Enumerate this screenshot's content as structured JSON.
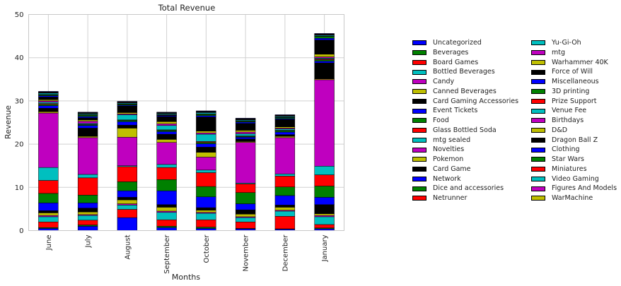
{
  "chart_data": {
    "type": "bar",
    "stacked": true,
    "title": "Total Revenue",
    "xlabel": "Months",
    "ylabel": "Revenue",
    "ylim": [
      0,
      50
    ],
    "yticks": [
      "0",
      "10",
      "20",
      "30",
      "40",
      "50"
    ],
    "grid": true,
    "legend_position": "right, outside plot, two columns",
    "categories": [
      "June",
      "July",
      "August",
      "September",
      "October",
      "November",
      "December",
      "January"
    ],
    "series": [
      {
        "name": "Uncategorized",
        "color": "#0000ff",
        "values": [
          0.5,
          1.0,
          3.0,
          0.7,
          0.5,
          0.4,
          0.3,
          0.4
        ]
      },
      {
        "name": "Beverages",
        "color": "#008000",
        "values": [
          0.2,
          0.3,
          0,
          0.3,
          0.3,
          0.1,
          0.1,
          0.2
        ]
      },
      {
        "name": "Board Games",
        "color": "#ff0000",
        "values": [
          1.3,
          1.1,
          1.9,
          1.5,
          1.7,
          1.5,
          2.9,
          0.8
        ]
      },
      {
        "name": "Bottled Beverages",
        "color": "#00bfbf",
        "values": [
          1.2,
          1.1,
          1.0,
          1.7,
          1.5,
          1.0,
          1.2,
          1.8
        ]
      },
      {
        "name": "Candy",
        "color": "#bf00bf",
        "values": [
          0.3,
          0.2,
          0.3,
          0.3,
          0.2,
          0.2,
          0.2,
          0.3
        ]
      },
      {
        "name": "Canned Beverages",
        "color": "#bfbf00",
        "values": [
          0.6,
          0.6,
          0.9,
          0.9,
          0.5,
          0.6,
          0.7,
          0.4
        ]
      },
      {
        "name": "Card Gaming Accessories",
        "color": "#000000",
        "values": [
          0.5,
          0.9,
          0.6,
          0.6,
          0.6,
          1.0,
          0.5,
          2.1
        ]
      },
      {
        "name": "Event Tickets",
        "color": "#0000ff",
        "values": [
          1.8,
          1.2,
          1.5,
          3.2,
          2.5,
          1.4,
          2.2,
          1.7
        ]
      },
      {
        "name": "Food",
        "color": "#008000",
        "values": [
          2.2,
          1.8,
          2.1,
          2.6,
          2.4,
          2.6,
          2.0,
          2.6
        ]
      },
      {
        "name": "Glass Bottled Soda",
        "color": "#ff0000",
        "values": [
          3.0,
          4.0,
          3.5,
          2.8,
          3.2,
          2.0,
          2.5,
          2.6
        ]
      },
      {
        "name": "mtg sealed",
        "color": "#00bfbf",
        "values": [
          3.0,
          0.8,
          0.2,
          0.7,
          0.6,
          0.2,
          0.5,
          2.0
        ]
      },
      {
        "name": "Novelties",
        "color": "#bf00bf",
        "values": [
          12.6,
          8.5,
          6.6,
          5.1,
          3.0,
          9.4,
          8.4,
          20.0
        ]
      },
      {
        "name": "Pokemon",
        "color": "#bfbf00",
        "values": [
          0.3,
          0.3,
          2.1,
          0.7,
          1.1,
          0.2,
          0.3,
          0.2
        ]
      },
      {
        "name": "Card Game",
        "color": "#000000",
        "values": [
          0.8,
          1.9,
          0.7,
          1.2,
          1.2,
          0.6,
          0.4,
          3.7
        ]
      },
      {
        "name": "Network",
        "color": "#0000ff",
        "values": [
          0.6,
          0.6,
          0.8,
          0.6,
          0.8,
          0.4,
          0.6,
          0.4
        ]
      },
      {
        "name": "Dice and accessories",
        "color": "#008000",
        "values": [
          0.3,
          0.2,
          0.3,
          0.3,
          0.3,
          0.2,
          0.3,
          0.3
        ]
      },
      {
        "name": "Netrunner",
        "color": "#ff0000",
        "values": [
          0.2,
          0.1,
          0.1,
          0.1,
          0.2,
          0.1,
          0.1,
          0.2
        ]
      },
      {
        "name": "Yu-Gi-Oh",
        "color": "#00bfbf",
        "values": [
          0.3,
          0.2,
          1.2,
          1.0,
          1.7,
          0.5,
          0.3,
          0.2
        ]
      },
      {
        "name": "mtg",
        "color": "#bf00bf",
        "values": [
          0.3,
          0.5,
          0.2,
          0.4,
          0.3,
          0.4,
          0.2,
          0.3
        ]
      },
      {
        "name": "Warhammer 40K",
        "color": "#bfbf00",
        "values": [
          0.3,
          0.3,
          0.3,
          0.5,
          0.4,
          0.4,
          0.3,
          0.6
        ]
      },
      {
        "name": "Force of Will",
        "color": "#000000",
        "values": [
          0.6,
          0.5,
          1.5,
          1.2,
          3.3,
          1.6,
          1.7,
          3.3
        ]
      },
      {
        "name": "Miscellaneous",
        "color": "#0000ff",
        "values": [
          0.3,
          0.3,
          0.2,
          0.2,
          0.3,
          0.3,
          0.2,
          0.4
        ]
      },
      {
        "name": "3D printing",
        "color": "#008000",
        "values": [
          0.2,
          0.3,
          0.2,
          0.1,
          0.3,
          0.2,
          0.2,
          0.4
        ]
      },
      {
        "name": "Prize Support",
        "color": "#ff0000",
        "values": [
          0.1,
          0.1,
          0.1,
          0.1,
          0.1,
          0.1,
          0.1,
          0.1
        ]
      },
      {
        "name": "Venue Fee",
        "color": "#00bfbf",
        "values": [
          0.3,
          0.2,
          0.2,
          0.2,
          0.3,
          0.2,
          0.2,
          0.2
        ]
      },
      {
        "name": "Birthdays",
        "color": "#bf00bf",
        "values": [
          0.1,
          0.1,
          0.1,
          0.1,
          0.1,
          0.1,
          0.1,
          0.1
        ]
      },
      {
        "name": "D&D",
        "color": "#bfbf00",
        "values": [
          0.1,
          0.1,
          0.1,
          0.1,
          0.1,
          0.1,
          0.1,
          0.1
        ]
      },
      {
        "name": "Dragon Ball Z",
        "color": "#000000",
        "values": [
          0.1,
          0.1,
          0.1,
          0.1,
          0.1,
          0.1,
          0.1,
          0.1
        ]
      },
      {
        "name": "Clothing",
        "color": "#0000ff",
        "values": [
          0.1,
          0.1,
          0.1,
          0.1,
          0.1,
          0.1,
          0.1,
          0.1
        ]
      },
      {
        "name": "Star Wars",
        "color": "#008000",
        "values": [
          0,
          0,
          0,
          0,
          0,
          0,
          0,
          0
        ]
      },
      {
        "name": "Miniatures",
        "color": "#ff0000",
        "values": [
          0,
          0,
          0,
          0,
          0,
          0,
          0,
          0
        ]
      },
      {
        "name": "Video Gaming",
        "color": "#00bfbf",
        "values": [
          0,
          0,
          0,
          0,
          0,
          0,
          0,
          0
        ]
      },
      {
        "name": "Figures And Models",
        "color": "#bf00bf",
        "values": [
          0,
          0,
          0,
          0,
          0,
          0,
          0,
          0
        ]
      },
      {
        "name": "WarMachine",
        "color": "#bfbf00",
        "values": [
          0,
          0,
          0,
          0,
          0,
          0,
          0,
          0
        ]
      }
    ]
  }
}
